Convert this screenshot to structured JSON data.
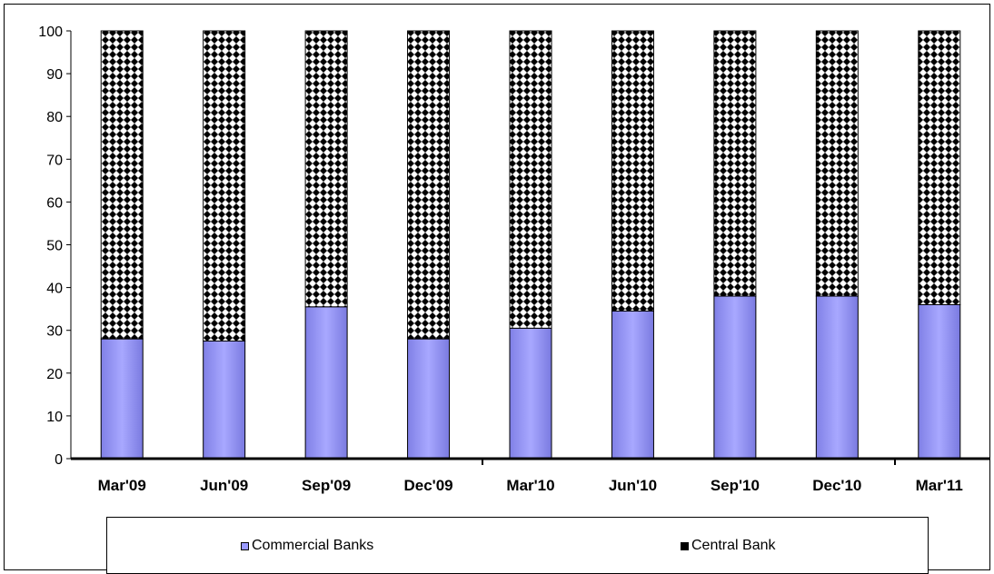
{
  "chart_data": {
    "type": "bar",
    "stacked": true,
    "categories": [
      "Mar'09",
      "Jun'09",
      "Sep'09",
      "Dec'09",
      "Mar'10",
      "Jun'10",
      "Sep'10",
      "Dec'10",
      "Mar'11"
    ],
    "series": [
      {
        "name": "Commercial Banks",
        "values": [
          28,
          27.5,
          35.5,
          28,
          30.5,
          34.5,
          38,
          38,
          36
        ],
        "color": "#9999ff",
        "pattern": "solid"
      },
      {
        "name": "Central Bank",
        "values": [
          72,
          72.5,
          64.5,
          72,
          69.5,
          65.5,
          62,
          62,
          64
        ],
        "color": "#000000",
        "pattern": "diamond-checker"
      }
    ],
    "ylim": [
      0,
      100
    ],
    "yticks": [
      "0",
      "10",
      "20",
      "30",
      "40",
      "50",
      "60",
      "70",
      "80",
      "90",
      "100"
    ],
    "grid": false,
    "legend_position": "bottom"
  }
}
